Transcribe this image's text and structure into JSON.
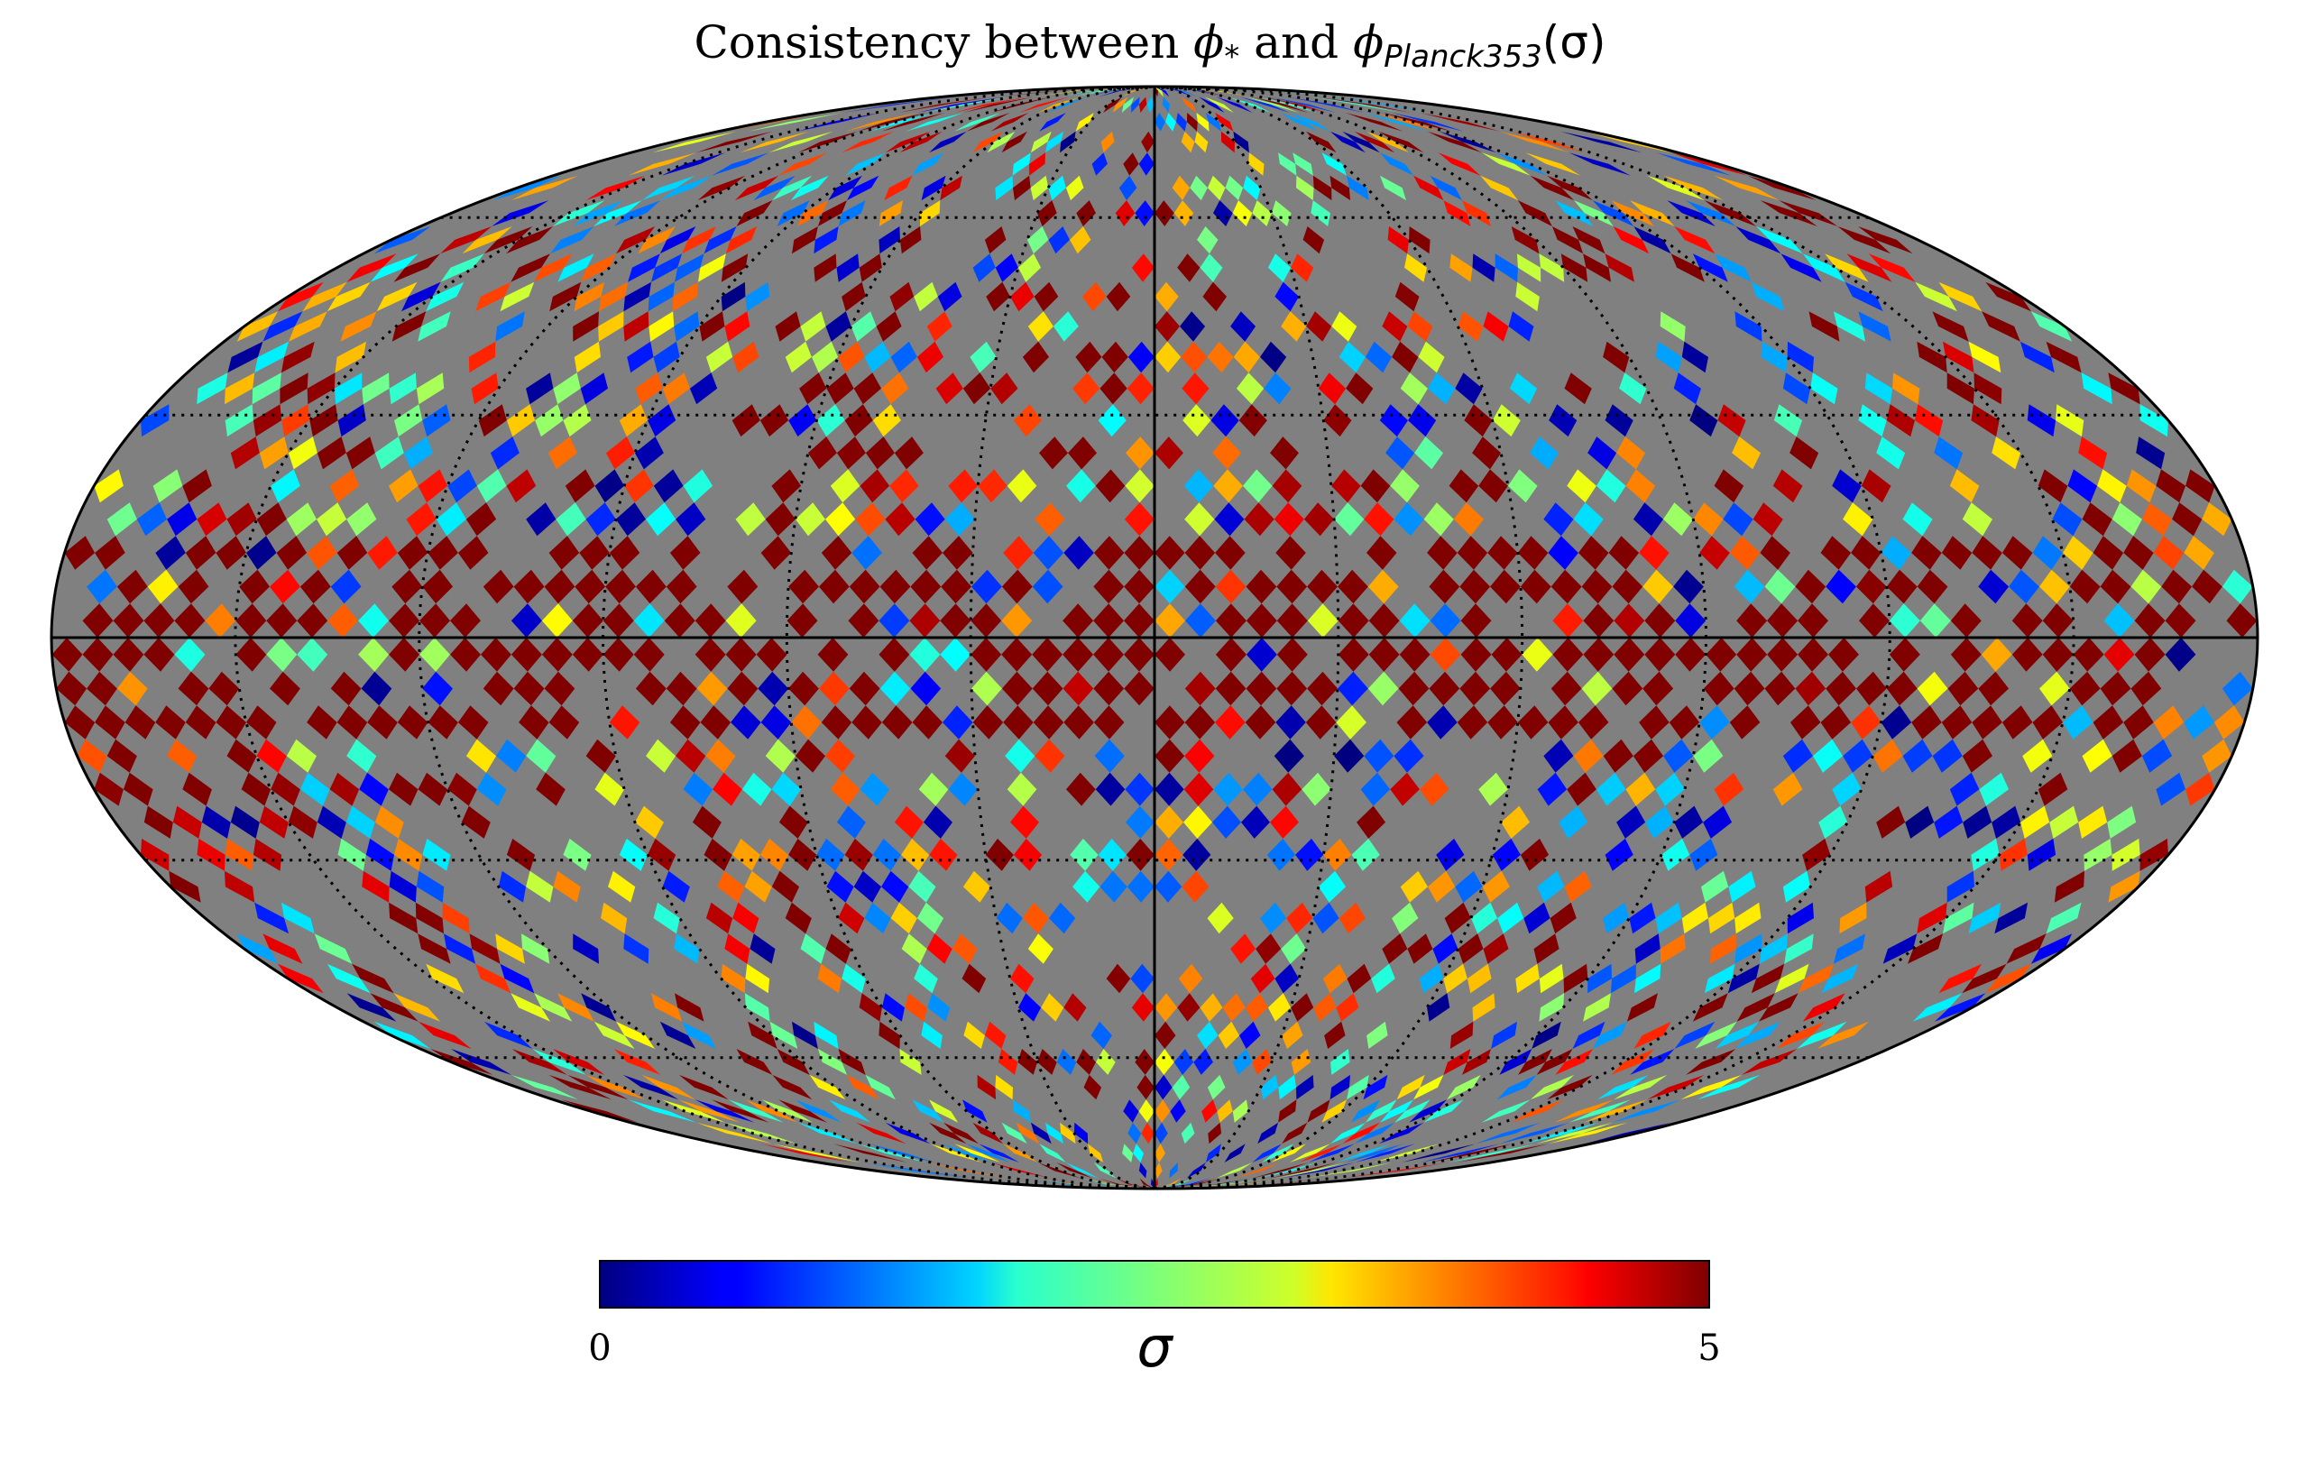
{
  "chart_data": {
    "type": "heatmap",
    "projection": "mollweide",
    "title_parts": {
      "prefix": "Consistency between ",
      "phi_star": "ϕ",
      "star": "*",
      "and": " and ",
      "phi_planck": "ϕ",
      "planck_sub": "Planck353",
      "suffix": "(σ)"
    },
    "colorbar": {
      "colormap": "jet",
      "vmin": 0,
      "vmax": 5,
      "tick_min": "0",
      "tick_max": "5",
      "label": "σ"
    },
    "masked_color": "#808080",
    "graticule": {
      "meridians_deg": [
        -150,
        -120,
        -90,
        -60,
        -30,
        0,
        30,
        60,
        90,
        120,
        150
      ],
      "parallels_deg": [
        -60,
        -30,
        0,
        30,
        60
      ],
      "style": "dotted"
    },
    "high_value_band": "galactic plane, |lat| < 12°, mostly saturated at 5σ",
    "coverage_fraction": 0.55,
    "grid": {
      "nlon": 72,
      "nlat": 40
    },
    "random_seed": 353
  }
}
